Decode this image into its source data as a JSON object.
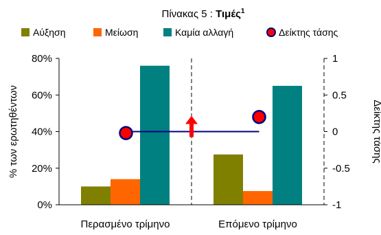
{
  "chart_data": {
    "type": "bar",
    "title": "Πίνακας 5 : ",
    "title_bold": "Τιμές",
    "title_superscript": "1",
    "categories": [
      "Περασμένο τρίμηνο",
      "Επόμενο τρίμηνο"
    ],
    "series": [
      {
        "name": "Αύξηση",
        "color": "#808000",
        "values": [
          10,
          27.5
        ]
      },
      {
        "name": "Μείωση",
        "color": "#ff6600",
        "values": [
          14,
          7.5
        ]
      },
      {
        "name": "Καμία αλλαγή",
        "color": "#008080",
        "values": [
          76,
          65
        ]
      }
    ],
    "line_series": {
      "name": "Δείκτης τάσης",
      "axis": "right",
      "values": [
        -0.02,
        0.2
      ],
      "line_color": "#000080",
      "marker_color": "#ff0000"
    },
    "y_left": {
      "label": "% των ερωτηθέντων",
      "min": 0,
      "max": 80,
      "ticks": [
        0,
        20,
        40,
        60,
        80
      ],
      "tick_labels": [
        "0%",
        "20%",
        "40%",
        "60%",
        "80%"
      ]
    },
    "y_right": {
      "label": "Δείκτης τάσης",
      "min": -1,
      "max": 1,
      "ticks": [
        -1,
        -0.5,
        0,
        0.5,
        1
      ],
      "tick_labels": [
        "-1",
        "-0.5",
        "0",
        "0.5",
        "1"
      ]
    },
    "baseline_value": 0,
    "arrow_direction": "up",
    "legend_position": "top",
    "grid": false
  }
}
